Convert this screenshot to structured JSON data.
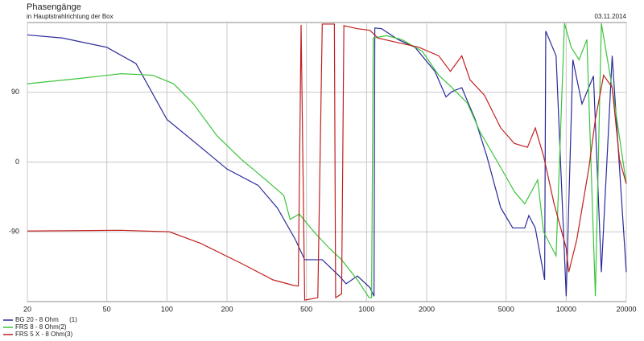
{
  "chart_data": {
    "type": "line",
    "title": "Phasengänge",
    "subtitle": "in Hauptstrahlrichtung der Box",
    "date": "03.11.2014",
    "xscale": "log",
    "grid": true,
    "legend": "bottom-left",
    "xlim": [
      20,
      20000
    ],
    "ylim": [
      -180,
      180
    ],
    "xticks": [
      20,
      50,
      100,
      200,
      500,
      1000,
      2000,
      5000,
      10000,
      20000
    ],
    "yticks": [
      -90,
      0,
      90
    ],
    "series": [
      {
        "name": "BG 20 - 8 Ohm      (1)",
        "color": "#2a2a9a",
        "x": [
          20,
          30,
          50,
          70,
          100,
          148,
          200,
          286,
          357,
          440,
          490,
          600,
          730,
          790,
          900,
          1040,
          1090,
          1100,
          1190,
          1440,
          1750,
          2200,
          2500,
          2680,
          3000,
          3500,
          4000,
          4700,
          5400,
          6200,
          6500,
          7000,
          7800,
          7900,
          8900,
          10000,
          10800,
          12000,
          13700,
          15000,
          17000,
          20000
        ],
        "values": [
          164,
          160,
          148,
          127,
          55,
          19,
          -9,
          -30,
          -59,
          -100,
          -126,
          -126,
          -147,
          -157,
          -147,
          -162,
          -173,
          173,
          172,
          158,
          148,
          117,
          84,
          91,
          96,
          55,
          8,
          -59,
          -85,
          -85,
          -69,
          -85,
          -152,
          169,
          137,
          -173,
          132,
          75,
          111,
          -142,
          137,
          -142
        ]
      },
      {
        "name": "FRS 8 - 8 Ohm(2)",
        "color": "#3cc43c",
        "x": [
          20,
          37,
          59,
          85,
          108,
          135,
          178,
          237,
          313,
          385,
          414,
          460,
          545,
          650,
          750,
          900,
          1030,
          1060,
          1080,
          1260,
          1500,
          1900,
          2300,
          2630,
          3200,
          3700,
          4700,
          5500,
          6200,
          7200,
          7700,
          8900,
          9800,
          10600,
          11600,
          12700,
          14000,
          15000,
          17000,
          20000
        ],
        "values": [
          101,
          108,
          114,
          112,
          101,
          76,
          34,
          3,
          -23,
          -43,
          -74,
          -67,
          -90,
          -111,
          -126,
          -152,
          -175,
          -175,
          160,
          163,
          158,
          143,
          112,
          98,
          76,
          39,
          -7,
          -38,
          -54,
          -23,
          -90,
          -121,
          179,
          148,
          132,
          158,
          -173,
          179,
          96,
          -28
        ]
      },
      {
        "name": "FRS 5 X - 8 Ohm(3)",
        "color": "#c02020",
        "x": [
          20,
          59,
          103,
          148,
          237,
          340,
          430,
          455,
          470,
          490,
          570,
          600,
          690,
          700,
          750,
          770,
          900,
          1040,
          1140,
          1500,
          1830,
          2300,
          2630,
          3000,
          3300,
          3900,
          4700,
          5500,
          6400,
          7000,
          7700,
          8700,
          10000,
          10300,
          11300,
          13000,
          14000,
          15400,
          17000,
          18500,
          20000
        ],
        "values": [
          -89,
          -88,
          -90,
          -105,
          -131,
          -152,
          -159,
          -160,
          177,
          -178,
          -175,
          178,
          178,
          -175,
          -170,
          176,
          172,
          170,
          160,
          153,
          148,
          137,
          117,
          137,
          106,
          86,
          44,
          24,
          19,
          44,
          8,
          -54,
          -111,
          -142,
          -100,
          -7,
          55,
          112,
          96,
          3,
          -28
        ]
      }
    ]
  }
}
